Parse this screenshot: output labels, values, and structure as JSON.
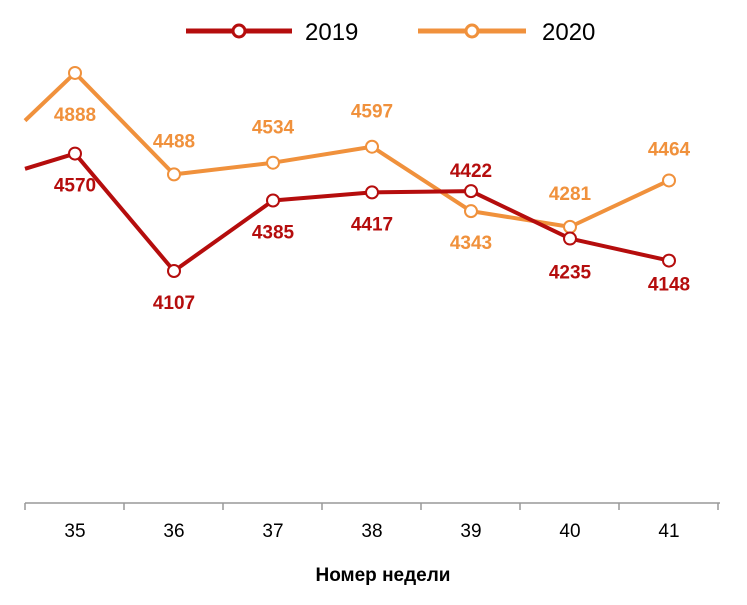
{
  "chart_data": {
    "type": "line",
    "title": "",
    "xlabel": "Номер недели",
    "ylabel": "",
    "x": [
      35,
      36,
      37,
      38,
      39,
      40,
      41
    ],
    "ylim": [
      3000,
      5000
    ],
    "grid": false,
    "legend_position": "top",
    "series": [
      {
        "name": "2019",
        "color": "#B50D0D",
        "values": [
          4570,
          4107,
          4385,
          4417,
          4422,
          4235,
          4148
        ]
      },
      {
        "name": "2020",
        "color": "#F0913C",
        "values": [
          4888,
          4488,
          4534,
          4597,
          4343,
          4281,
          4464
        ]
      }
    ],
    "left_edge_values": {
      "2019": 4510,
      "2020": 4700
    }
  }
}
